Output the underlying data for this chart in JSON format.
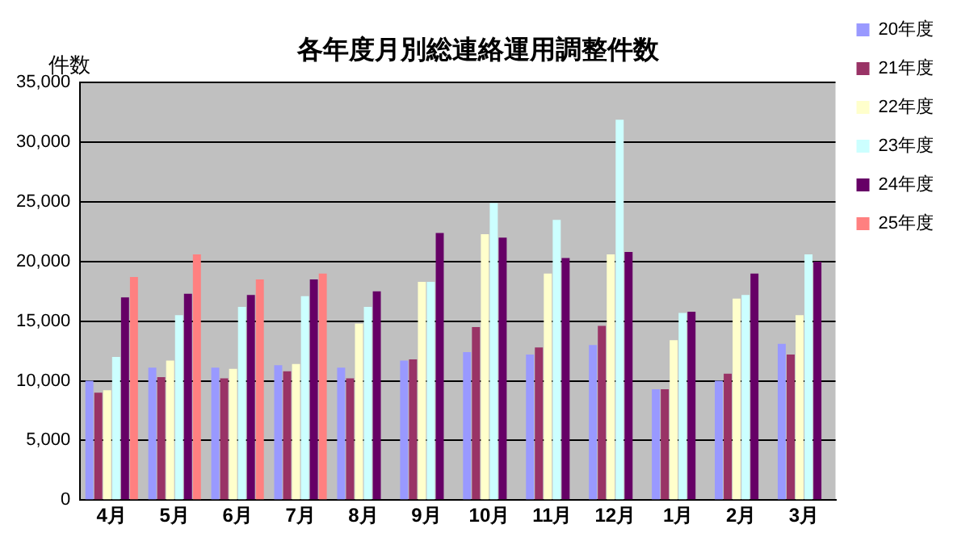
{
  "chart_data": {
    "type": "bar",
    "title": "各年度月別総連絡運用調整件数",
    "ylabel": "件数",
    "categories": [
      "4月",
      "5月",
      "6月",
      "7月",
      "8月",
      "9月",
      "10月",
      "11月",
      "12月",
      "1月",
      "2月",
      "3月"
    ],
    "series": [
      {
        "name": "20年度",
        "color": "#9999ff",
        "values": [
          10000,
          11100,
          11100,
          11300,
          11100,
          11700,
          12400,
          12200,
          13000,
          9300,
          10000,
          13100
        ]
      },
      {
        "name": "21年度",
        "color": "#993366",
        "values": [
          9000,
          10300,
          10200,
          10800,
          10200,
          11800,
          14500,
          12800,
          14600,
          9300,
          10600,
          12200
        ]
      },
      {
        "name": "22年度",
        "color": "#ffffcc",
        "values": [
          9200,
          11700,
          11000,
          11400,
          14800,
          18300,
          22300,
          19000,
          20600,
          13400,
          16900,
          15500
        ]
      },
      {
        "name": "23年度",
        "color": "#ccffff",
        "values": [
          12000,
          15500,
          16200,
          17100,
          16200,
          18300,
          24900,
          23500,
          31900,
          15700,
          17200,
          20600
        ]
      },
      {
        "name": "24年度",
        "color": "#660066",
        "values": [
          17000,
          17300,
          17200,
          18500,
          17500,
          22400,
          22000,
          20300,
          20800,
          15800,
          19000,
          20000
        ]
      },
      {
        "name": "25年度",
        "color": "#ff8080",
        "values": [
          18700,
          20600,
          18500,
          19000,
          null,
          null,
          null,
          null,
          null,
          null,
          null,
          null
        ]
      }
    ],
    "ylim": [
      0,
      35000
    ],
    "yticks": [
      0,
      {
        "value": 5000,
        "label": "5,000"
      },
      {
        "value": 10000,
        "label": "10,000"
      },
      {
        "value": 15000,
        "label": "15,000"
      },
      {
        "value": 20000,
        "label": "20,000"
      },
      {
        "value": 25000,
        "label": "25,000"
      },
      {
        "value": 30000,
        "label": "30,000"
      },
      {
        "value": 35000,
        "label": "35,000"
      }
    ],
    "grid": "y",
    "legend": "top right"
  }
}
